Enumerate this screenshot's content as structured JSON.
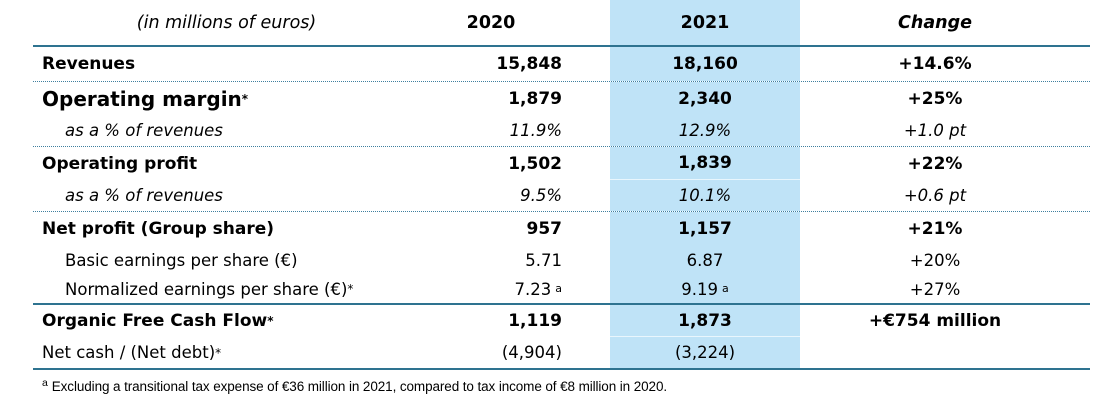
{
  "colors": {
    "highlight_column": "#bfe3f7",
    "separator_line": "#2e7390"
  },
  "header": {
    "label": "(in millions of euros)",
    "y2020": "2020",
    "y2021": "2021",
    "change": "Change"
  },
  "rows": [
    {
      "label": "Revenues",
      "v2020": "15,848",
      "v2021": "18,160",
      "change": "+14.6%"
    },
    {
      "label": "Operating margin",
      "label_sup": "*",
      "v2020": "1,879",
      "v2021": "2,340",
      "change": "+25%"
    },
    {
      "label": "as a % of revenues",
      "v2020": "11.9%",
      "v2021": "12.9%",
      "change": "+1.0 pt"
    },
    {
      "label": "Operating profit",
      "v2020": "1,502",
      "v2021": "1,839",
      "change": "+22%"
    },
    {
      "label": "as a % of revenues",
      "v2020": "9.5%",
      "v2021": "10.1%",
      "change": "+0.6 pt"
    },
    {
      "label": "Net profit (Group share)",
      "v2020": "957",
      "v2021": "1,157",
      "change": "+21%"
    },
    {
      "label": "Basic earnings per share (€)",
      "v2020": "5.71",
      "v2021": "6.87",
      "change": "+20%"
    },
    {
      "label": "Normalized earnings per share (€)",
      "label_sup": "*",
      "v2020": "7.23",
      "v2020_sup": "a",
      "v2021": "9.19",
      "v2021_sup": "a",
      "change": "+27%"
    },
    {
      "label": "Organic Free Cash Flow",
      "label_sup": "*",
      "v2020": "1,119",
      "v2021": "1,873",
      "change": "+€754 million"
    },
    {
      "label": "Net cash / (Net debt)",
      "label_sup": "*",
      "v2020": "(4,904)",
      "v2021": "(3,224)",
      "change": ""
    }
  ],
  "footnote": {
    "marker": "a",
    "text": "Excluding a transitional tax expense of €36 million in 2021, compared to tax income of €8 million in 2020."
  }
}
